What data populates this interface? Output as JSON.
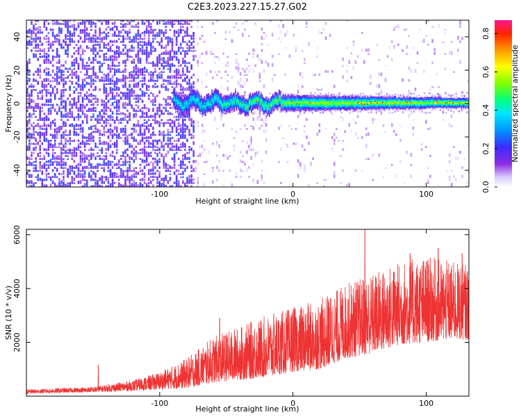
{
  "title": "C2E3.2023.227.15.27.G02",
  "chart_data": [
    {
      "type": "heatmap",
      "xlabel": "Height of straight line (km)",
      "ylabel": "Frequency (Hz)",
      "xlim": [
        -200,
        132
      ],
      "ylim": [
        -50,
        50
      ],
      "xticks": [
        -100,
        0,
        100
      ],
      "yticks": [
        -40,
        -20,
        0,
        20,
        40
      ],
      "colorbar": {
        "label": "Normalized spectral amplitude",
        "range": [
          0.0,
          0.87
        ],
        "ticks": [
          0.0,
          0.2,
          0.4,
          0.6,
          0.8
        ]
      },
      "features": {
        "noise_region_x": [
          -200,
          -75
        ],
        "central_band_x": [
          -90,
          132
        ],
        "central_band_halfwidth_hz": [
          6,
          3
        ],
        "low_noise_gap_x": [
          -42,
          -30
        ]
      }
    },
    {
      "type": "line",
      "xlabel": "Height of straight line (km)",
      "ylabel": "SNR (10 * v/v)",
      "xlim": [
        -200,
        132
      ],
      "ylim": [
        0,
        6200
      ],
      "xticks": [
        -100,
        0,
        100
      ],
      "yticks": [
        2000,
        4000,
        6000
      ],
      "color": "#ee3333",
      "envelope": {
        "x": [
          -200,
          -150,
          -120,
          -100,
          -80,
          -60,
          -40,
          -20,
          0,
          20,
          40,
          60,
          80,
          100,
          120,
          132
        ],
        "low": [
          100,
          150,
          200,
          250,
          300,
          500,
          600,
          700,
          900,
          1000,
          1400,
          1600,
          1900,
          2000,
          2100,
          2100
        ],
        "high": [
          250,
          350,
          600,
          900,
          1400,
          2200,
          2600,
          3000,
          3300,
          3600,
          4200,
          4600,
          5000,
          5200,
          5000,
          4900
        ]
      },
      "peaks": [
        {
          "x": -146,
          "y": 1150
        },
        {
          "x": -55,
          "y": 2900
        },
        {
          "x": 54,
          "y": 6200
        },
        {
          "x": 88,
          "y": 5300
        },
        {
          "x": 109,
          "y": 5500
        },
        {
          "x": 127,
          "y": 5300
        }
      ]
    }
  ]
}
